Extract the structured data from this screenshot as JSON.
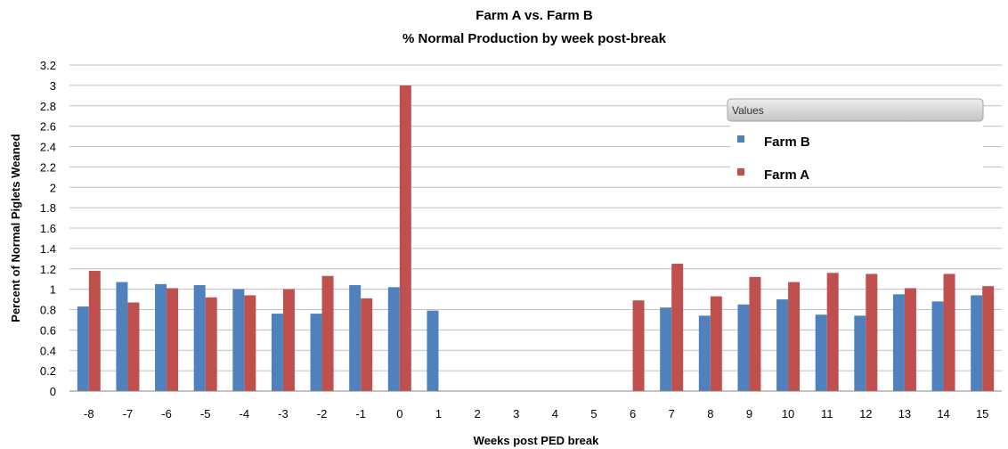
{
  "chart_data": {
    "type": "bar",
    "title": "Farm A vs. Farm B",
    "subtitle": "% Normal Production by week post-break",
    "xlabel": "Weeks post PED break",
    "ylabel": "Percent of Normal Piglets Weaned",
    "ylim": [
      0,
      3.2
    ],
    "yticks": [
      "0",
      "0.2",
      "0.4",
      "0.6",
      "0.8",
      "1",
      "1.2",
      "1.4",
      "1.6",
      "1.8",
      "2",
      "2.2",
      "2.4",
      "2.6",
      "2.8",
      "3",
      "3.2"
    ],
    "categories": [
      "-8",
      "-7",
      "-6",
      "-5",
      "-4",
      "-3",
      "-2",
      "-1",
      "0",
      "1",
      "2",
      "3",
      "4",
      "5",
      "6",
      "7",
      "8",
      "9",
      "10",
      "11",
      "12",
      "13",
      "14",
      "15"
    ],
    "series": [
      {
        "name": "Farm B",
        "color": "#4F81BD",
        "values": [
          0.83,
          1.07,
          1.05,
          1.04,
          1.0,
          0.76,
          0.76,
          1.04,
          1.02,
          0.79,
          null,
          null,
          null,
          null,
          null,
          0.82,
          0.74,
          0.85,
          0.9,
          0.75,
          0.74,
          0.95,
          0.88,
          0.94
        ]
      },
      {
        "name": "Farm A",
        "color": "#C0504D",
        "values": [
          1.18,
          0.87,
          1.01,
          0.92,
          0.94,
          1.0,
          1.13,
          0.91,
          3.0,
          null,
          null,
          null,
          null,
          null,
          0.89,
          1.25,
          0.93,
          1.12,
          1.07,
          1.16,
          1.15,
          1.01,
          1.15,
          1.03
        ]
      }
    ],
    "grid": true,
    "legend": {
      "title": "Values",
      "placement": "top-right"
    }
  }
}
